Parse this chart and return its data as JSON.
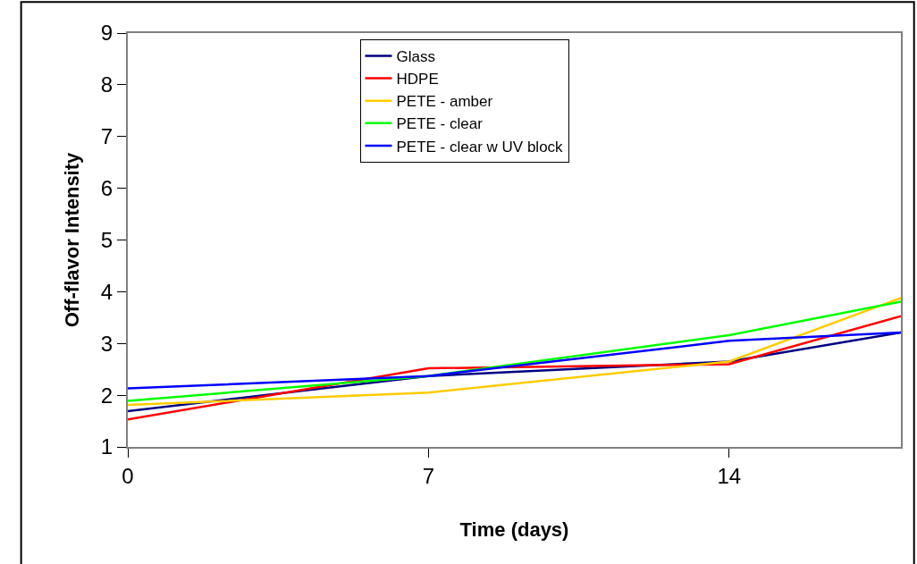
{
  "chart_data": {
    "type": "line",
    "xlabel": "Time (days)",
    "ylabel": "Off-flavor Intensity",
    "x": [
      0,
      7,
      14,
      18
    ],
    "xlim": [
      0,
      18
    ],
    "xticks": [
      0,
      7,
      14
    ],
    "ylim": [
      1,
      9
    ],
    "yticks": [
      1,
      2,
      3,
      4,
      5,
      6,
      7,
      8,
      9
    ],
    "legend": "top",
    "marker": "none",
    "line_style": "solid",
    "series": [
      {
        "name": "Glass",
        "color": "#000080",
        "values": [
          1.69,
          2.37,
          2.65,
          3.21
        ]
      },
      {
        "name": "HDPE",
        "color": "#ff0000",
        "values": [
          1.53,
          2.52,
          2.6,
          3.53
        ]
      },
      {
        "name": "PETE - amber",
        "color": "#ffcc00",
        "values": [
          1.81,
          2.05,
          2.65,
          3.88
        ]
      },
      {
        "name": "PETE - clear",
        "color": "#00ff00",
        "values": [
          1.89,
          2.37,
          3.16,
          3.81
        ]
      },
      {
        "name": "PETE - clear w UV block",
        "color": "#0000ff",
        "values": [
          2.13,
          2.37,
          3.05,
          3.21
        ]
      }
    ]
  }
}
